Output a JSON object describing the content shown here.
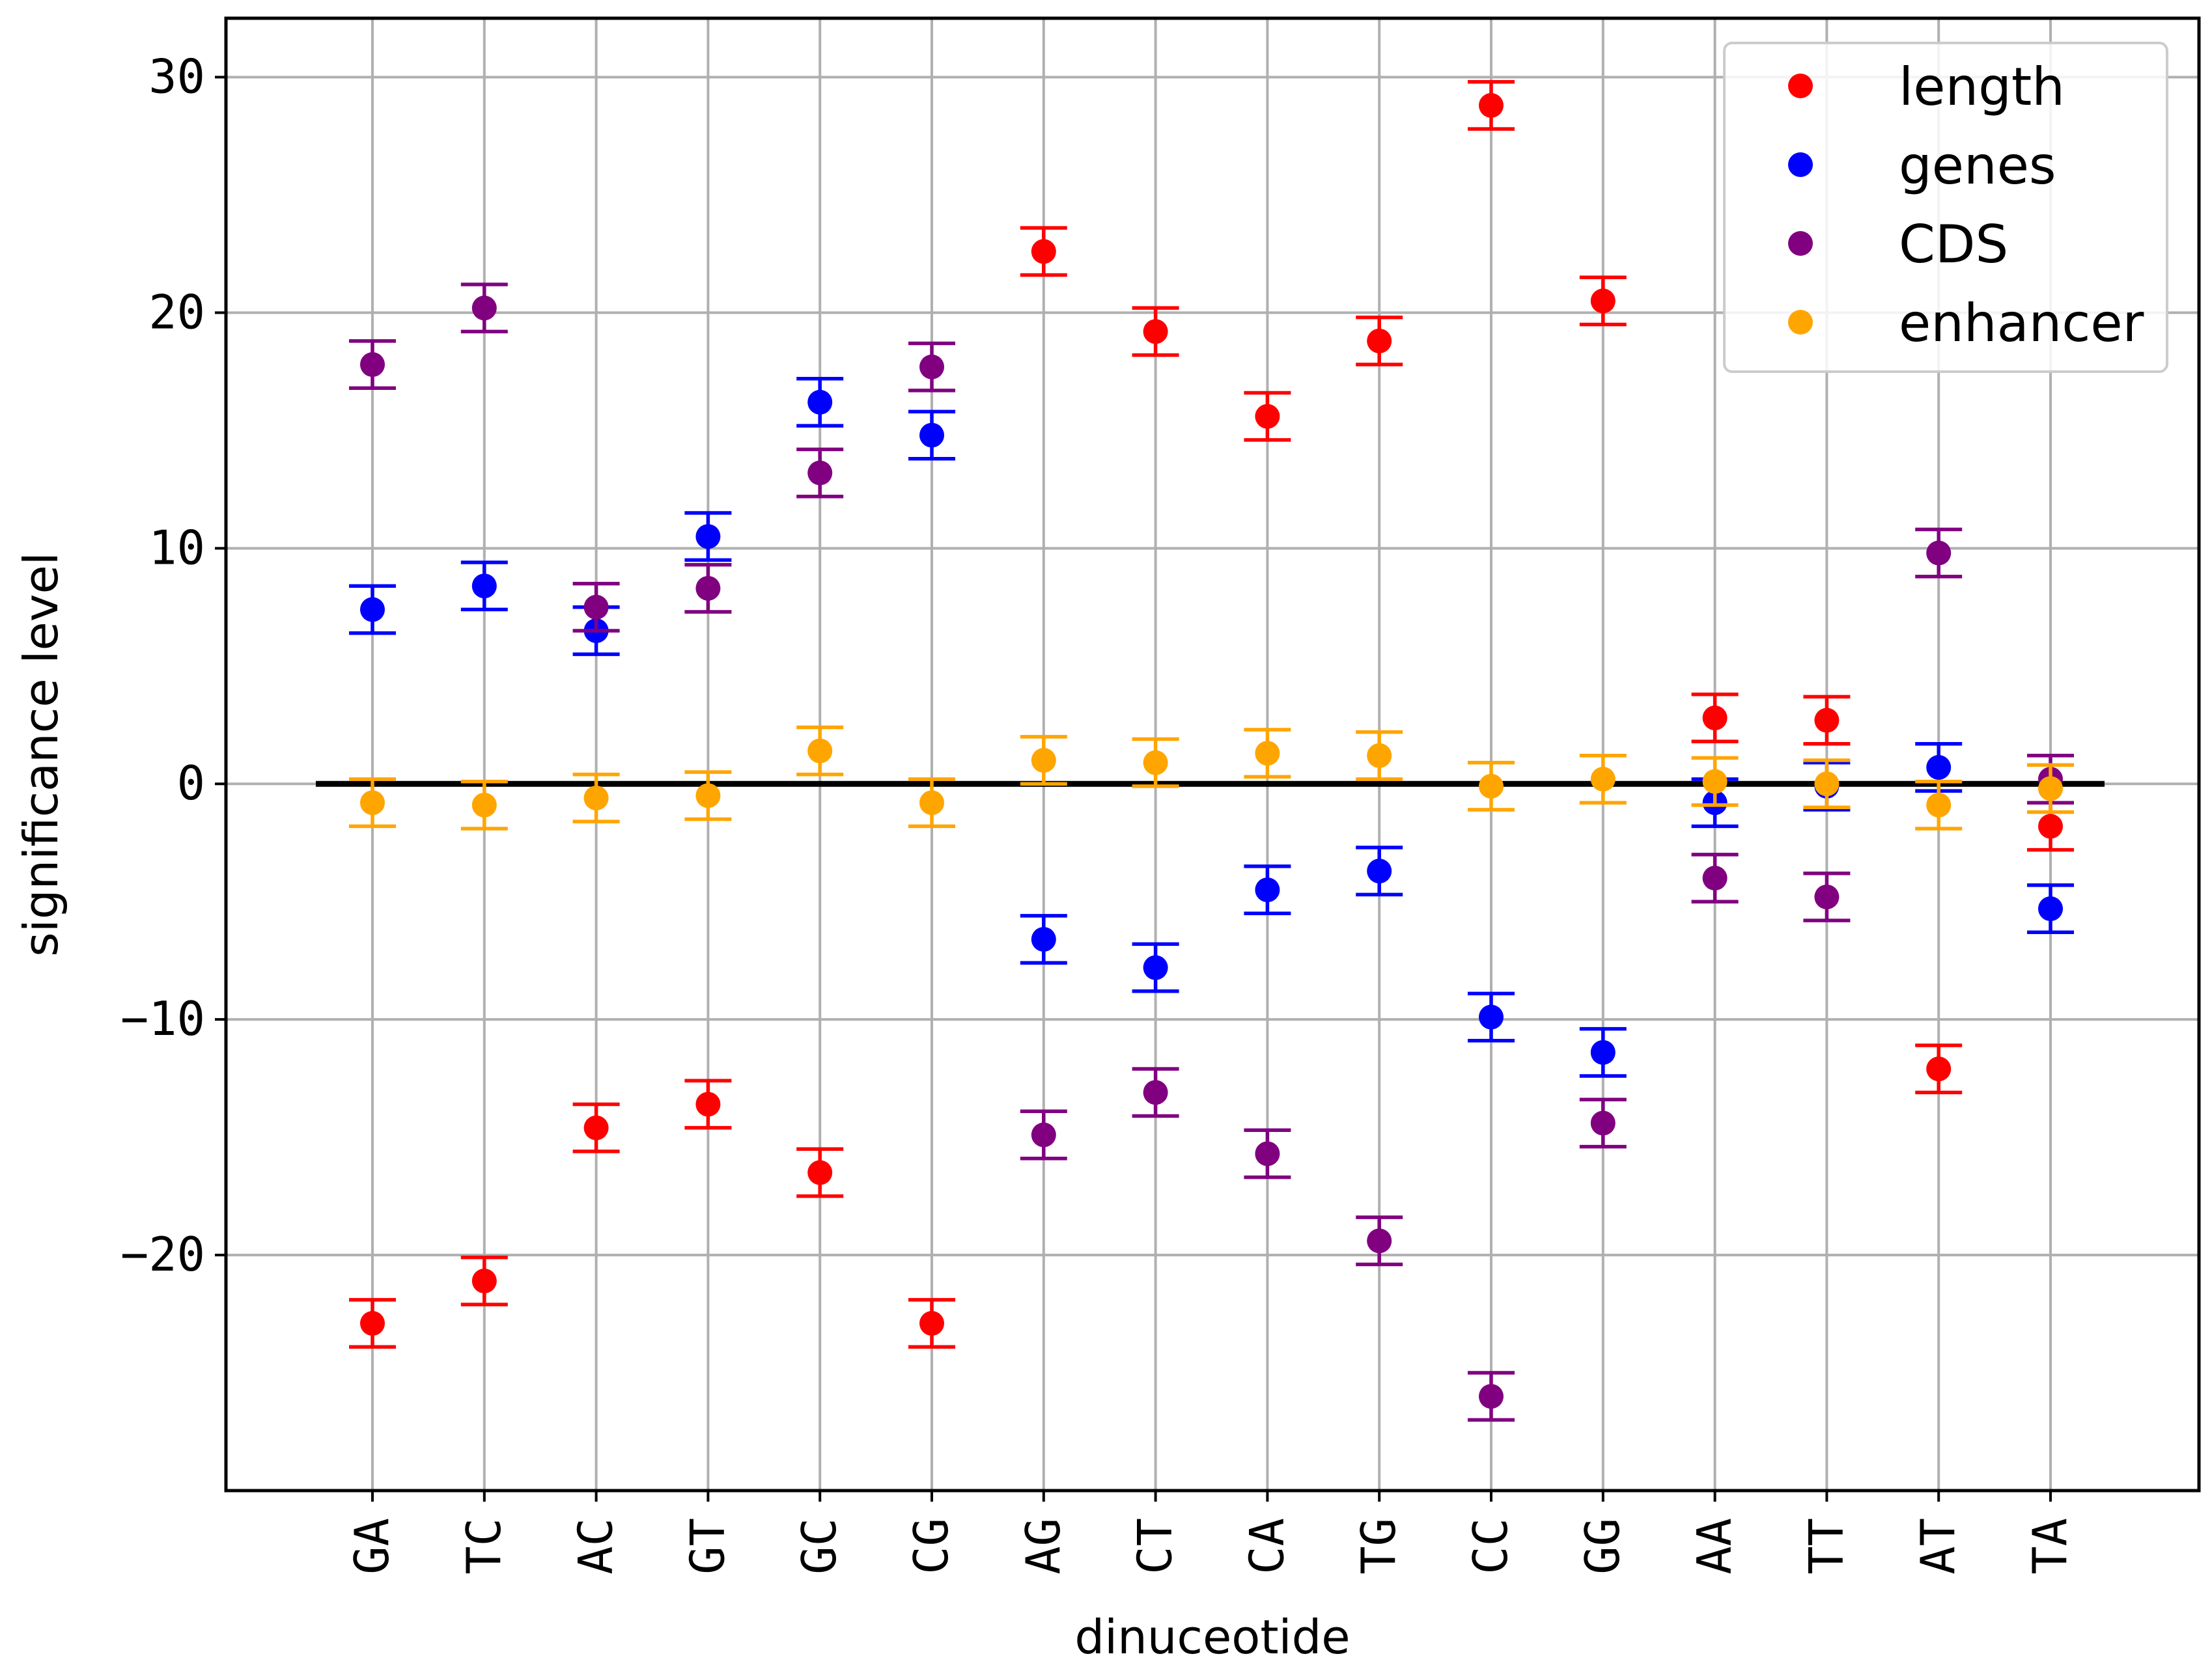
{
  "chart_data": {
    "type": "scatter",
    "title": "",
    "xlabel": "dinuceotide",
    "ylabel": "significance level",
    "categories": [
      "GA",
      "TC",
      "AC",
      "GT",
      "GC",
      "CG",
      "AG",
      "CT",
      "CA",
      "TG",
      "CC",
      "GG",
      "AA",
      "TT",
      "AT",
      "TA"
    ],
    "yticks": [
      -20,
      -10,
      0,
      10,
      20,
      30
    ],
    "ylim": [
      -30,
      32.5
    ],
    "grid": true,
    "legend_position": "top-right",
    "error_bar_halfwidth": 1.0,
    "zero_line": true,
    "series": [
      {
        "name": "length",
        "color": "#ff0000",
        "values": [
          -22.9,
          -21.1,
          -14.6,
          -13.6,
          -16.5,
          -22.9,
          22.6,
          19.2,
          15.6,
          18.8,
          28.8,
          20.5,
          2.8,
          2.7,
          -12.1,
          -1.8
        ]
      },
      {
        "name": "genes",
        "color": "#0000ff",
        "values": [
          7.4,
          8.4,
          6.5,
          10.5,
          16.2,
          14.8,
          -6.6,
          -7.8,
          -4.5,
          -3.7,
          -9.9,
          -11.4,
          -0.8,
          -0.1,
          0.7,
          -5.3
        ]
      },
      {
        "name": "CDS",
        "color": "#800080",
        "values": [
          17.8,
          20.2,
          7.5,
          8.3,
          13.2,
          17.7,
          -14.9,
          -13.1,
          -15.7,
          -19.4,
          -26.0,
          -14.4,
          -4.0,
          -4.8,
          9.8,
          0.2
        ]
      },
      {
        "name": "enhancer",
        "color": "#ffa500",
        "values": [
          -0.8,
          -0.9,
          -0.6,
          -0.5,
          1.4,
          -0.8,
          1.0,
          0.9,
          1.3,
          1.2,
          -0.1,
          0.2,
          0.1,
          0.0,
          -0.9,
          -0.2
        ]
      }
    ]
  }
}
